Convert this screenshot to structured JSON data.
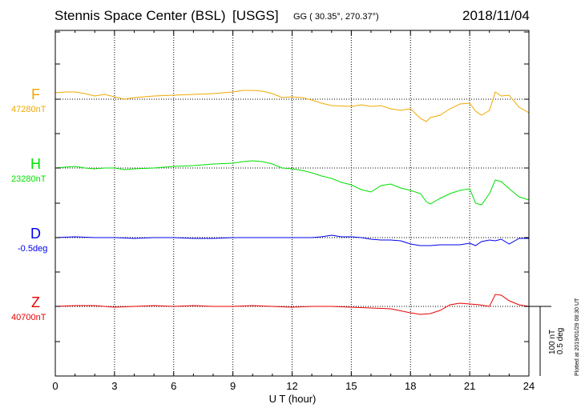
{
  "header": {
    "station": "Stennis Space Center (BSL)",
    "agency": "[USGS]",
    "coords": "GG ( 30.35°, 270.37°)",
    "date": "2018/11/04"
  },
  "footer": {
    "plotted": "Plotted at 2019/01/29 08:30 UT"
  },
  "scale": {
    "nt": "100 nT",
    "deg": "0.5 deg"
  },
  "chart_data": {
    "type": "line",
    "xlabel": "U T (hour)",
    "xlim": [
      0,
      24
    ],
    "xticks": [
      0,
      3,
      6,
      9,
      12,
      15,
      18,
      21,
      24
    ],
    "xticklabels": [
      "0",
      "3",
      "6",
      "9",
      "12",
      "15",
      "18",
      "21",
      "24"
    ],
    "grid": true,
    "series": [
      {
        "name": "F",
        "baseline_label": "47280nT",
        "color": "#f0a800",
        "x": [
          0,
          0.5,
          1,
          1.5,
          2,
          2.5,
          3,
          3.5,
          4,
          5,
          6,
          7,
          8,
          9,
          9.5,
          10,
          10.5,
          11,
          11.5,
          12,
          12.5,
          13,
          13.5,
          14,
          15,
          15.5,
          16,
          16.5,
          17,
          17.5,
          18,
          18.5,
          18.8,
          19,
          19.5,
          20,
          20.5,
          21,
          21.3,
          21.6,
          22,
          22.3,
          22.6,
          23,
          23.5,
          24
        ],
        "y": [
          8,
          9,
          9,
          7,
          4,
          6,
          3,
          0,
          2,
          4,
          5,
          6,
          7,
          9,
          11,
          11,
          10,
          7,
          2,
          3,
          2,
          -1,
          -5,
          -8,
          -9,
          -7,
          -9,
          -8,
          -12,
          -14,
          -12,
          -24,
          -28,
          -23,
          -20,
          -12,
          -6,
          -5,
          -15,
          -20,
          -14,
          9,
          4,
          5,
          -10,
          -17
        ]
      },
      {
        "name": "H",
        "baseline_label": "23280nT",
        "color": "#00e000",
        "x": [
          0,
          0.5,
          1,
          1.5,
          2,
          2.5,
          3,
          3.5,
          4,
          5,
          6,
          7,
          8,
          9,
          9.5,
          10,
          10.5,
          11,
          11.5,
          12,
          12.5,
          13,
          13.5,
          14,
          14.5,
          15,
          15.5,
          16,
          16.5,
          17,
          17.5,
          18,
          18.5,
          18.8,
          19,
          19.5,
          20,
          20.5,
          21,
          21.3,
          21.6,
          22,
          22.3,
          22.6,
          23,
          23.5,
          24
        ],
        "y": [
          0,
          1,
          2,
          0,
          -1,
          0,
          0,
          -2,
          -1,
          0,
          2,
          3,
          5,
          6,
          8,
          9,
          8,
          5,
          0,
          -1,
          -3,
          -6,
          -10,
          -13,
          -18,
          -21,
          -27,
          -30,
          -22,
          -20,
          -25,
          -28,
          -32,
          -42,
          -45,
          -38,
          -32,
          -28,
          -26,
          -44,
          -46,
          -32,
          -15,
          -17,
          -26,
          -36,
          -40
        ]
      },
      {
        "name": "D",
        "baseline_label": "-0.5deg",
        "color": "#0000ee",
        "x": [
          0,
          1,
          2,
          3,
          4,
          5,
          6,
          7,
          8,
          9,
          10,
          11,
          12,
          13,
          13.5,
          14,
          14.5,
          15,
          15.5,
          16,
          16.5,
          17,
          17.5,
          18,
          18.5,
          19,
          19.5,
          20,
          20.5,
          21,
          21.3,
          21.6,
          22,
          22.3,
          22.6,
          23,
          23.5,
          24
        ],
        "y": [
          0,
          1,
          0,
          0,
          -1,
          0,
          0,
          -1,
          -1,
          0,
          0,
          0,
          0,
          0,
          1,
          3,
          1,
          1,
          0,
          -2,
          -3,
          -3,
          -4,
          -8,
          -10,
          -10,
          -9,
          -9,
          -9,
          -7,
          -10,
          -5,
          -3,
          -4,
          -2,
          -8,
          -1,
          -1
        ]
      },
      {
        "name": "Z",
        "baseline_label": "40700nT",
        "color": "#e80000",
        "x": [
          0,
          1,
          2,
          3,
          4,
          5,
          6,
          7,
          8,
          9,
          10,
          11,
          12,
          13,
          14,
          15,
          16,
          17,
          18,
          18.5,
          19,
          19.5,
          20,
          20.5,
          21,
          21.5,
          22,
          22.3,
          22.6,
          23,
          23.5,
          24
        ],
        "y": [
          0,
          1,
          1,
          -1,
          0,
          1,
          0,
          1,
          0,
          0,
          1,
          0,
          -1,
          0,
          0,
          -1,
          -2,
          -3,
          -8,
          -10,
          -9,
          -5,
          2,
          4,
          3,
          2,
          0,
          15,
          14,
          7,
          2,
          0
        ]
      }
    ]
  }
}
